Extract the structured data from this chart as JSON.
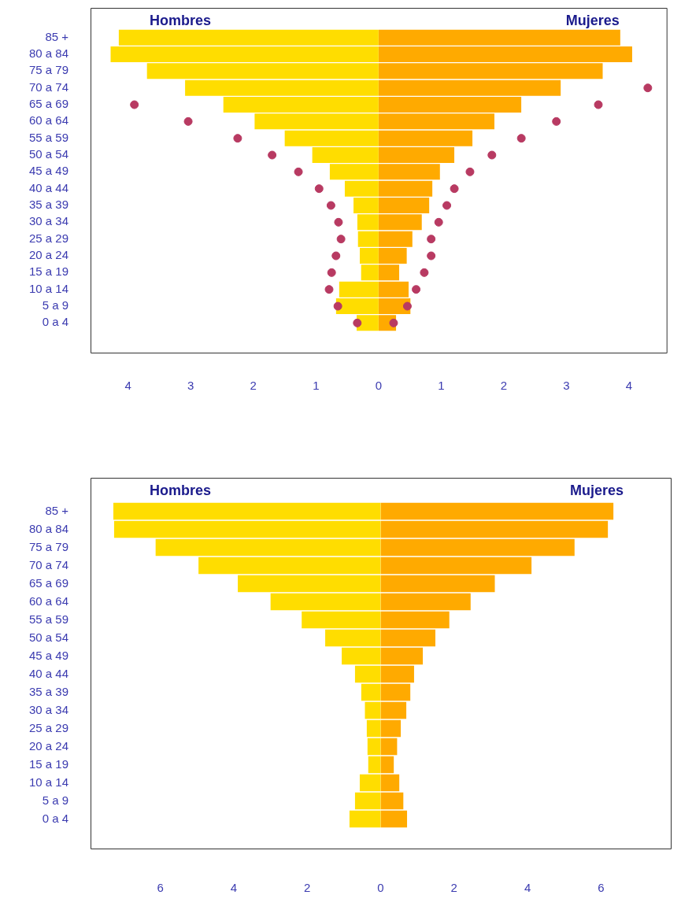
{
  "chart_data": [
    {
      "type": "bar",
      "orientation": "horizontal",
      "stacked": true,
      "marker": "circle",
      "categories": [
        "85 +",
        "80 a 84",
        "75 a 79",
        "70 a 74",
        "65 a 69",
        "60 a 64",
        "55 a 59",
        "50 a 54",
        "45 a 49",
        "40 a 44",
        "35 a 39",
        "30 a 34",
        "25 a 29",
        "20 a 24",
        "15 a 19",
        "10 a 14",
        "5 a 9",
        "0 a 4"
      ],
      "series": [
        {
          "name": "Hombres",
          "color": "#ffdd00",
          "values": [
            -4.15,
            -4.28,
            -3.7,
            -3.09,
            -2.48,
            -1.98,
            -1.5,
            -1.06,
            -0.78,
            -0.54,
            -0.4,
            -0.34,
            -0.33,
            -0.3,
            -0.28,
            -0.63,
            -0.68,
            -0.35
          ]
        },
        {
          "name": "Mujeres",
          "color": "#ffaa00",
          "values": [
            3.86,
            4.05,
            3.58,
            2.91,
            2.28,
            1.85,
            1.5,
            1.21,
            0.98,
            0.86,
            0.81,
            0.69,
            0.54,
            0.45,
            0.33,
            0.48,
            0.51,
            0.28
          ]
        },
        {
          "type": "scatter",
          "color": "#b83a62",
          "values": [
            null,
            null,
            null,
            null,
            -3.9,
            -3.04,
            -2.25,
            -1.7,
            -1.28,
            -0.95,
            -0.76,
            -0.64,
            -0.6,
            -0.68,
            -0.75,
            -0.79,
            -0.65,
            -0.34
          ]
        },
        {
          "type": "scatter",
          "color": "#b83a62",
          "values": [
            null,
            null,
            null,
            4.3,
            3.51,
            2.84,
            2.28,
            1.81,
            1.46,
            1.21,
            1.09,
            0.96,
            0.84,
            0.84,
            0.73,
            0.6,
            0.46,
            0.24
          ]
        }
      ],
      "xlim": [
        -4.6,
        4.6
      ],
      "xticks": [
        {
          "value": -4,
          "label": "4"
        },
        {
          "value": -3,
          "label": "3"
        },
        {
          "value": -2,
          "label": "2"
        },
        {
          "value": -1,
          "label": "1"
        },
        0,
        1,
        2,
        3,
        4
      ]
    },
    {
      "type": "bar",
      "orientation": "horizontal",
      "stacked": true,
      "categories": [
        "85 +",
        "80 a 84",
        "75 a 79",
        "70 a 74",
        "65 a 69",
        "60 a 64",
        "55 a 59",
        "50 a 54",
        "45 a 49",
        "40 a 44",
        "35 a 39",
        "30 a 34",
        "25 a 29",
        "20 a 24",
        "15 a 19",
        "10 a 14",
        "5 a 9",
        "0 a 4"
      ],
      "series": [
        {
          "name": "Hombres",
          "color": "#ffdd00",
          "values": [
            -7.28,
            -7.26,
            -6.13,
            -4.96,
            -3.89,
            -3.0,
            -2.15,
            -1.51,
            -1.06,
            -0.7,
            -0.53,
            -0.43,
            -0.38,
            -0.36,
            -0.34,
            -0.57,
            -0.7,
            -0.85
          ]
        },
        {
          "name": "Mujeres",
          "color": "#ffaa00",
          "values": [
            6.34,
            6.19,
            5.28,
            4.11,
            3.11,
            2.45,
            1.87,
            1.49,
            1.15,
            0.91,
            0.81,
            0.7,
            0.55,
            0.45,
            0.36,
            0.51,
            0.62,
            0.72
          ]
        }
      ],
      "xlim": [
        -7.9,
        7.9
      ],
      "xticks": [
        {
          "value": -6,
          "label": "6"
        },
        {
          "value": -4,
          "label": "4"
        },
        {
          "value": -2,
          "label": "2"
        },
        0,
        2,
        4,
        6
      ]
    }
  ]
}
